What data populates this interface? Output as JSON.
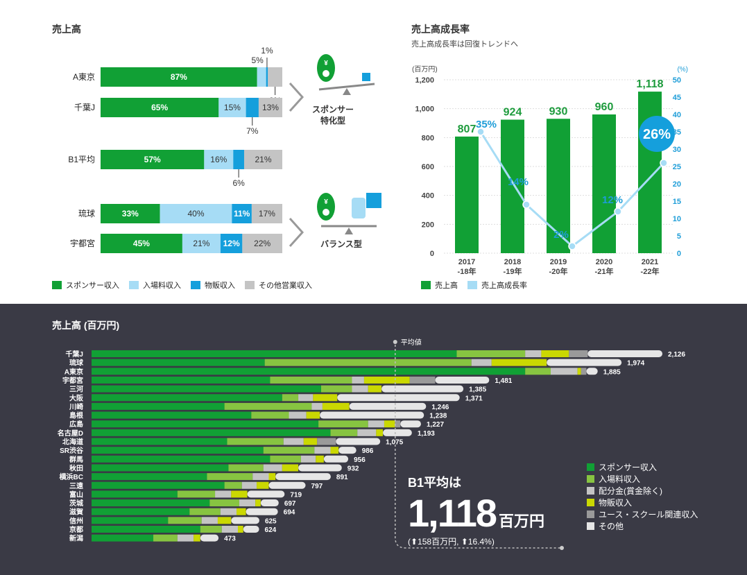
{
  "colors": {
    "sponsor": "#11a035",
    "admission": "#a6dcf5",
    "merch": "#159fdc",
    "other": "#c4c4c4",
    "dist": "#87c441",
    "lime": "#cad802",
    "youth": "#9a9a9a",
    "otherb": "#e6e6e6",
    "growth_line": "#a6dcf5",
    "bar_green": "#11a035",
    "val_green": "#1d9b3c",
    "pct_blue": "#1e9dd8"
  },
  "left_title": "売上高",
  "sponsor_type_label": [
    "スポンサー",
    "特化型"
  ],
  "balance_type_label": "バランス型",
  "left_legend": [
    "スポンサー収入",
    "入場料収入",
    "物販収入",
    "その他営業収入"
  ],
  "right_title": "売上高成長率",
  "right_subtitle": "売上高成長率は回復トレンドへ",
  "right_legend": [
    "売上高",
    "売上高成長率"
  ],
  "bottom_title": "売上高 (百万円)",
  "avg_marker_label": "平均値",
  "avg_heading": "B1平均は",
  "avg_value": "1,118",
  "avg_unit": "百万円",
  "avg_note": "(⬆158百万円, ⬆16.4%)",
  "bottom_legend": [
    "スポンサー収入",
    "入場料収入",
    "配分金(賞金除く)",
    "物販収入",
    "ユース・スクール関連収入",
    "その他"
  ],
  "chart_data": [
    {
      "type": "bar",
      "title": "売上高",
      "orientation": "horizontal-stacked-percent",
      "series_names": [
        "スポンサー収入",
        "入場料収入",
        "物販収入",
        "その他営業収入"
      ],
      "rows": [
        {
          "name": "A東京",
          "values": [
            87,
            5,
            1,
            8
          ],
          "labels": [
            "87%",
            "5%",
            "1%",
            "8%"
          ]
        },
        {
          "name": "千葉J",
          "values": [
            65,
            15,
            7,
            13
          ],
          "labels": [
            "65%",
            "15%",
            "7%",
            "13%"
          ]
        },
        {
          "name": "B1平均",
          "values": [
            57,
            16,
            6,
            21
          ],
          "labels": [
            "57%",
            "16%",
            "6%",
            "21%"
          ]
        },
        {
          "name": "琉球",
          "values": [
            33,
            40,
            11,
            17
          ],
          "labels": [
            "33%",
            "40%",
            "11%",
            "17%"
          ]
        },
        {
          "name": "宇都宮",
          "values": [
            45,
            21,
            12,
            22
          ],
          "labels": [
            "45%",
            "21%",
            "12%",
            "22%"
          ]
        }
      ]
    },
    {
      "type": "bar",
      "title": "売上高成長率",
      "categories": [
        "2017\n-18年",
        "2018\n-19年",
        "2019\n-20年",
        "2020\n-21年",
        "2021\n-22年"
      ],
      "y_left_unit": "(百万円)",
      "y_right_unit": "(%)",
      "ylim_left": [
        0,
        1200
      ],
      "ylim_right": [
        0,
        50
      ],
      "y_left_ticks": [
        "0",
        "200",
        "400",
        "600",
        "800",
        "1,000",
        "1,200"
      ],
      "y_right_ticks": [
        "0",
        "5",
        "10",
        "15",
        "20",
        "25",
        "30",
        "35",
        "40",
        "45",
        "50"
      ],
      "series": [
        {
          "name": "売上高",
          "type": "bar",
          "values": [
            807,
            924,
            930,
            960,
            1118
          ],
          "labels": [
            "807",
            "924",
            "930",
            "960",
            "1,118"
          ]
        },
        {
          "name": "売上高成長率",
          "type": "line",
          "values": [
            35,
            14,
            2,
            12,
            26
          ],
          "labels": [
            "35%",
            "14%",
            "2%",
            "12%",
            "26%"
          ]
        }
      ]
    },
    {
      "type": "bar",
      "title": "売上高 (百万円)",
      "orientation": "horizontal-stacked",
      "average": 1118,
      "series_names": [
        "スポンサー収入",
        "入場料収入",
        "配分金(賞金除く)",
        "物販収入",
        "ユース・スクール関連収入",
        "その他"
      ],
      "rows": [
        {
          "name": "千葉J",
          "total": 2126,
          "label": "2,126",
          "parts": [
            1360,
            255,
            60,
            103,
            70,
            278
          ]
        },
        {
          "name": "琉球",
          "total": 1974,
          "label": "1,974",
          "parts": [
            645,
            770,
            75,
            205,
            0,
            279
          ]
        },
        {
          "name": "A東京",
          "total": 1885,
          "label": "1,885",
          "parts": [
            1615,
            95,
            100,
            13,
            20,
            42
          ]
        },
        {
          "name": "宇都宮",
          "total": 1481,
          "label": "1,481",
          "parts": [
            665,
            305,
            45,
            170,
            95,
            201
          ]
        },
        {
          "name": "三河",
          "total": 1385,
          "label": "1,385",
          "parts": [
            855,
            115,
            60,
            50,
            0,
            305
          ]
        },
        {
          "name": "大阪",
          "total": 1371,
          "label": "1,371",
          "parts": [
            710,
            60,
            55,
            90,
            0,
            456
          ]
        },
        {
          "name": "川崎",
          "total": 1246,
          "label": "1,246",
          "parts": [
            495,
            325,
            40,
            100,
            0,
            286
          ]
        },
        {
          "name": "島根",
          "total": 1238,
          "label": "1,238",
          "parts": [
            595,
            140,
            65,
            50,
            0,
            388
          ]
        },
        {
          "name": "広島",
          "total": 1227,
          "label": "1,227",
          "parts": [
            845,
            185,
            60,
            40,
            20,
            77
          ]
        },
        {
          "name": "名古屋D",
          "total": 1193,
          "label": "1,193",
          "parts": [
            890,
            100,
            70,
            25,
            0,
            108
          ]
        },
        {
          "name": "北海道",
          "total": 1075,
          "label": "1,075",
          "parts": [
            505,
            210,
            75,
            50,
            70,
            165
          ]
        },
        {
          "name": "SR渋谷",
          "total": 986,
          "label": "986",
          "parts": [
            640,
            190,
            60,
            30,
            0,
            66
          ]
        },
        {
          "name": "群馬",
          "total": 956,
          "label": "956",
          "parts": [
            665,
            115,
            55,
            30,
            0,
            91
          ]
        },
        {
          "name": "秋田",
          "total": 932,
          "label": "932",
          "parts": [
            510,
            130,
            70,
            60,
            0,
            162
          ]
        },
        {
          "name": "横浜BC",
          "total": 891,
          "label": "891",
          "parts": [
            430,
            170,
            60,
            25,
            0,
            206
          ]
        },
        {
          "name": "三遠",
          "total": 797,
          "label": "797",
          "parts": [
            495,
            65,
            55,
            45,
            0,
            137
          ]
        },
        {
          "name": "富山",
          "total": 719,
          "label": "719",
          "parts": [
            320,
            140,
            60,
            60,
            0,
            139
          ]
        },
        {
          "name": "茨城",
          "total": 697,
          "label": "697",
          "parts": [
            440,
            110,
            60,
            20,
            0,
            67
          ]
        },
        {
          "name": "滋賀",
          "total": 694,
          "label": "694",
          "parts": [
            365,
            115,
            60,
            35,
            0,
            119
          ]
        },
        {
          "name": "信州",
          "total": 625,
          "label": "625",
          "parts": [
            285,
            125,
            60,
            50,
            0,
            105
          ]
        },
        {
          "name": "京都",
          "total": 624,
          "label": "624",
          "parts": [
            405,
            80,
            60,
            20,
            0,
            59
          ]
        },
        {
          "name": "新潟",
          "total": 473,
          "label": "473",
          "parts": [
            230,
            90,
            60,
            25,
            0,
            68
          ]
        }
      ]
    }
  ]
}
